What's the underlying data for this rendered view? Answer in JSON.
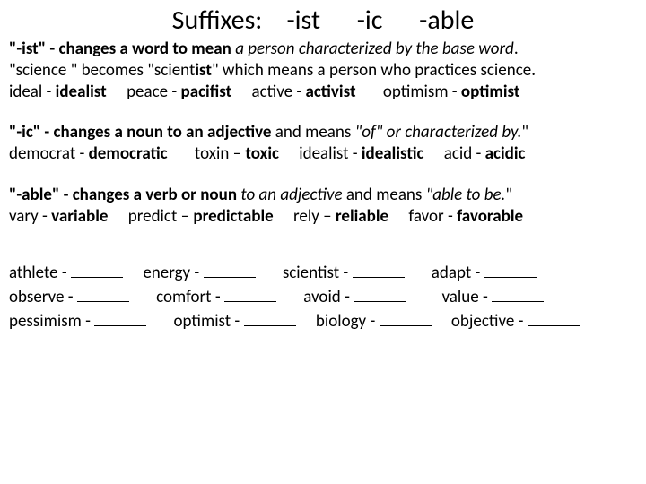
{
  "title_parts": {
    "label": "Suffixes:",
    "s1": "-ist",
    "s2": "-ic",
    "s3": "-able"
  },
  "ist": {
    "line1a": "\"-ist\"  -  changes a word to mean ",
    "line1b": "a person characterized by the base word",
    "line1c": ".",
    "line2a": "\"science \" becomes  \"scient",
    "line2b": "ist",
    "line2c": "\"  which means a person who practices science.",
    "line3a": "ideal  -  ",
    "line3b": "idealist",
    "line3c": "peace  -  ",
    "line3d": "pacifist",
    "line3e": "active  -  ",
    "line3f": "activist",
    "line3g": "optimism  -  ",
    "line3h": "optimist"
  },
  "ic": {
    "line1a": "\"-ic\"  -  changes a noun to an adjective",
    "line1b": "  and means  ",
    "line1c": "\"of\"  or  characterized by.",
    "line1d": "\"",
    "line2a": "democrat  - ",
    "line2b": "democratic",
    "line2c": "toxin – ",
    "line2d": "toxic",
    "line2e": "idealist  -  ",
    "line2f": "idealistic",
    "line2g": "acid  -  ",
    "line2h": "acidic"
  },
  "able": {
    "line1a": "\"-able\"   -   changes a verb or noun ",
    "line1b": "to an adjective",
    "line1c": "  and means  ",
    "line1d": "\"able to be.",
    "line1e": "\"",
    "line2a": "vary - ",
    "line2b": "variable",
    "line2c": "predict – ",
    "line2d": "predictable",
    "line2e": "rely – ",
    "line2f": "reliable",
    "line2g": "favor - ",
    "line2h": "favorable"
  },
  "ex": {
    "r1c1": "athlete  - ",
    "r1c2": "energy  - ",
    "r1c3": "scientist  - ",
    "r1c4": "adapt  -  ",
    "r2c1": "observe - ",
    "r2c2": "comfort - ",
    "r2c3": "avoid - ",
    "r2c4": "value - ",
    "r3c1": "pessimism - ",
    "r3c2": "optimist - ",
    "r3c3": "biology - ",
    "r3c4": "objective - "
  }
}
